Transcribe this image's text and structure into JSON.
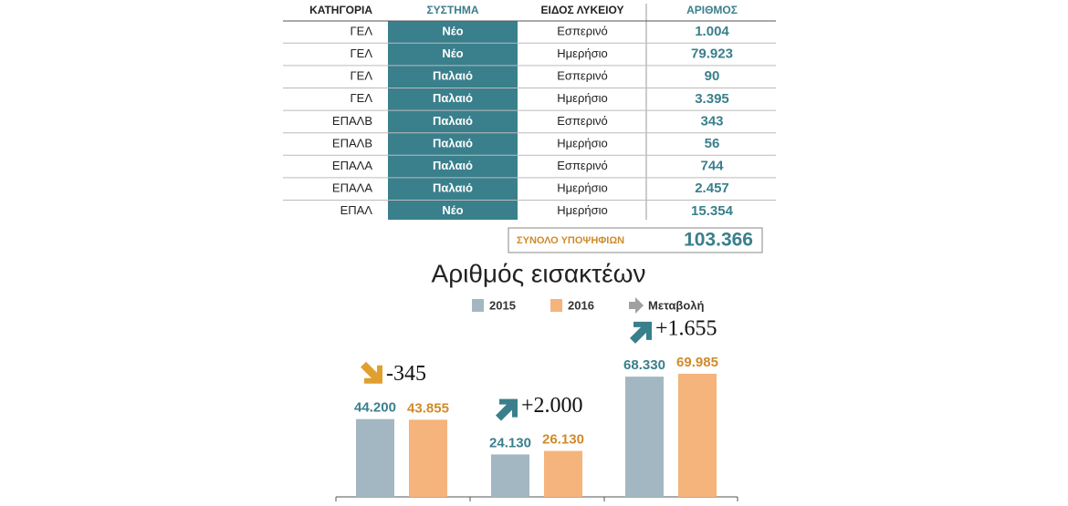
{
  "table": {
    "headers": [
      "ΚΑΤΗΓΟΡΙΑ",
      "ΣΥΣΤΗΜΑ",
      "ΕΙΔΟΣ ΛΥΚΕΙΟΥ",
      "ΑΡΙΘΜΟΣ"
    ],
    "rows": [
      [
        "ΓΕΛ",
        "Νέο",
        "Εσπερινό",
        "1.004"
      ],
      [
        "ΓΕΛ",
        "Νέο",
        "Ημερήσιο",
        "79.923"
      ],
      [
        "ΓΕΛ",
        "Παλαιό",
        "Εσπερινό",
        "90"
      ],
      [
        "ΓΕΛ",
        "Παλαιό",
        "Ημερήσιο",
        "3.395"
      ],
      [
        "ΕΠΑΛΒ",
        "Παλαιό",
        "Εσπερινό",
        "343"
      ],
      [
        "ΕΠΑΛΒ",
        "Παλαιό",
        "Ημερήσιο",
        "56"
      ],
      [
        "ΕΠΑΛΑ",
        "Παλαιό",
        "Εσπερινό",
        "744"
      ],
      [
        "ΕΠΑΛΑ",
        "Παλαιό",
        "Ημερήσιο",
        "2.457"
      ],
      [
        "ΕΠΑΛ",
        "Νέο",
        "Ημερήσιο",
        "15.354"
      ]
    ],
    "total_label": "ΣΥΝΟΛΟ ΥΠΟΨΗΦΙΩΝ",
    "total": "103.366"
  },
  "chart_data": {
    "type": "bar",
    "title": "Αριθμός εισακτέων",
    "categories": [
      null,
      null,
      null
    ],
    "series": [
      {
        "name": "2015",
        "color": "#a3b7c2",
        "values": [
          44200,
          24130,
          68330
        ],
        "value_labels": [
          "44.200",
          "24.130",
          "68.330"
        ],
        "label_color": "#3a7f8c"
      },
      {
        "name": "2016",
        "color": "#f4b47c",
        "values": [
          43855,
          26130,
          69985
        ],
        "value_labels": [
          "43.855",
          "26.130",
          "69.985"
        ],
        "label_color": "#d08a2a"
      }
    ],
    "changes": {
      "name": "Μεταβολή",
      "values": [
        -345,
        2000,
        1655
      ],
      "value_labels": [
        "-345",
        "+2.000",
        "+1.655"
      ],
      "up_color": "#3a7f8c",
      "down_color": "#e0a030",
      "legend_color": "#a0a0a0"
    }
  }
}
